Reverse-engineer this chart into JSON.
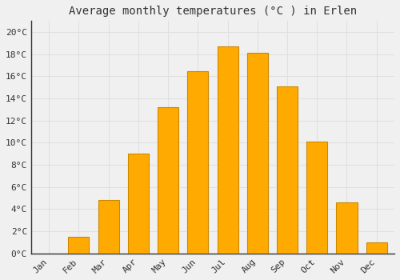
{
  "title": "Average monthly temperatures (°C ) in Erlen",
  "months": [
    "Jan",
    "Feb",
    "Mar",
    "Apr",
    "May",
    "Jun",
    "Jul",
    "Aug",
    "Sep",
    "Oct",
    "Nov",
    "Dec"
  ],
  "values": [
    0.0,
    1.5,
    4.8,
    9.0,
    13.2,
    16.5,
    18.7,
    18.1,
    15.1,
    10.1,
    4.6,
    1.0
  ],
  "bar_color": "#FFAA00",
  "bar_edge_color": "#CC8800",
  "background_color": "#F0F0F0",
  "grid_color": "#E0E0E0",
  "text_color": "#333333",
  "ylim": [
    0,
    21
  ],
  "ytick_step": 2,
  "title_fontsize": 10,
  "tick_fontsize": 8,
  "font_family": "monospace",
  "bar_width": 0.7
}
